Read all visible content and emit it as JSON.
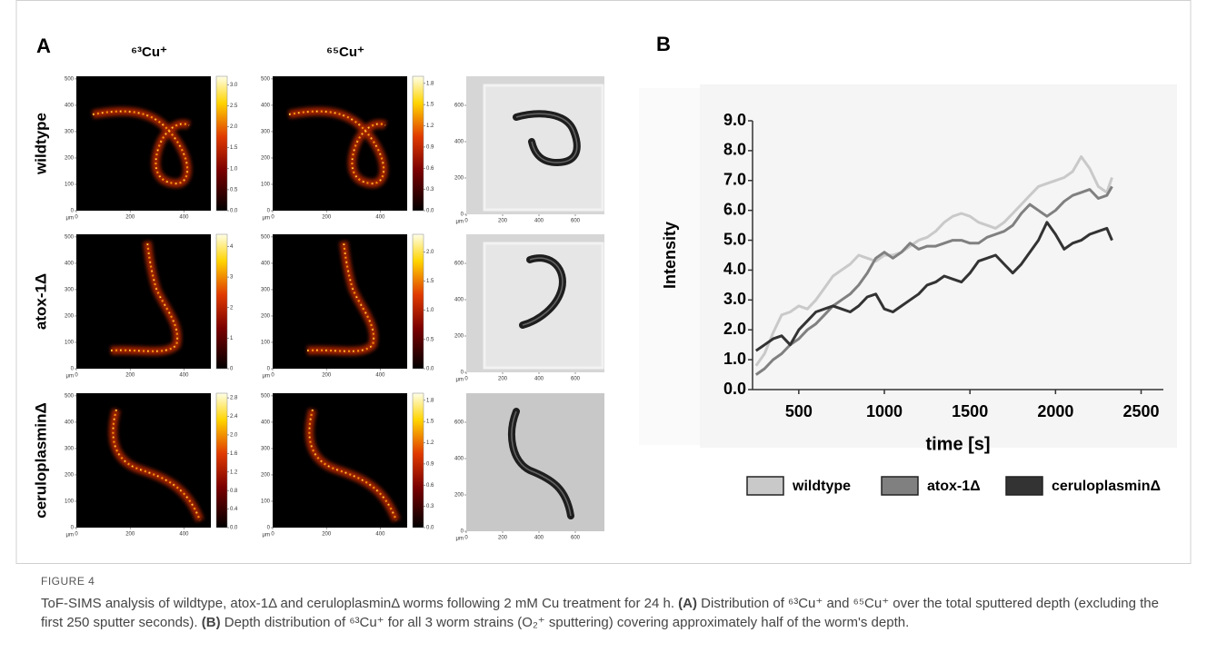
{
  "panel_a": {
    "label": "A",
    "column_headers": [
      "⁶³Cu⁺",
      "⁶⁵Cu⁺"
    ],
    "unit": "μm",
    "map_axes": {
      "xlim": [
        0,
        500
      ],
      "xticks": [
        0,
        200,
        400
      ],
      "ylim": [
        0,
        510
      ],
      "yticks": [
        0,
        100,
        200,
        300,
        400,
        500
      ]
    },
    "photo_axes": {
      "xlim": [
        0,
        760
      ],
      "xticks": [
        0,
        200,
        400,
        600
      ],
      "ylim": [
        0,
        760
      ],
      "yticks": [
        0,
        200,
        400,
        600
      ]
    },
    "rows": [
      {
        "label": "wildtype",
        "colorbars": [
          {
            "lim": [
              0,
              3.2
            ],
            "ticks": [
              {
                "value": 0,
                "label": "0.0"
              },
              0.5,
              {
                "value": 1,
                "label": "1.0"
              },
              1.5,
              {
                "value": 2,
                "label": "2.0"
              },
              2.5,
              {
                "value": 3,
                "label": "3.0"
              }
            ]
          },
          {
            "lim": [
              0,
              1.9
            ],
            "ticks": [
              {
                "value": 0,
                "label": "0.0"
              },
              0.3,
              0.6,
              0.9,
              1.2,
              1.5,
              1.8
            ]
          }
        ]
      },
      {
        "label": "atox-1Δ",
        "colorbars": [
          {
            "lim": [
              0,
              4.4
            ],
            "ticks": [
              0,
              1,
              2,
              3,
              4
            ]
          },
          {
            "lim": [
              0,
              2.3
            ],
            "ticks": [
              {
                "value": 0,
                "label": "0.0"
              },
              0.5,
              {
                "value": 1,
                "label": "1.0"
              },
              1.5,
              {
                "value": 2,
                "label": "2.0"
              }
            ]
          }
        ]
      },
      {
        "label": "ceruloplasminΔ",
        "colorbars": [
          {
            "lim": [
              0,
              2.9
            ],
            "ticks": [
              {
                "value": 0,
                "label": "0.0"
              },
              0.4,
              0.8,
              1.2,
              1.6,
              {
                "value": 2,
                "label": "2.0"
              },
              2.4,
              2.8
            ]
          },
          {
            "lim": [
              0,
              1.9
            ],
            "ticks": [
              {
                "value": 0,
                "label": "0.0"
              },
              0.3,
              0.6,
              0.9,
              1.2,
              1.5,
              1.8
            ]
          }
        ]
      }
    ]
  },
  "panel_b": {
    "label": "B"
  },
  "chart_data": {
    "type": "line",
    "x_label": "time [s]",
    "y_label": "Intensity",
    "xlim": [
      230,
      2630
    ],
    "xticks": [
      500,
      1000,
      1500,
      2000,
      2500
    ],
    "ylim": [
      0,
      9
    ],
    "yticks": [
      {
        "value": 0,
        "label": "0.0"
      },
      {
        "value": 1,
        "label": "1.0"
      },
      {
        "value": 2,
        "label": "2.0"
      },
      {
        "value": 3,
        "label": "3.0"
      },
      {
        "value": 4,
        "label": "4.0"
      },
      {
        "value": 5,
        "label": "5.0"
      },
      {
        "value": 6,
        "label": "6.0"
      },
      {
        "value": 7,
        "label": "7.0"
      },
      {
        "value": 8,
        "label": "8.0"
      },
      {
        "value": 9,
        "label": "9.0"
      }
    ],
    "legend": "bottom",
    "x": [
      250,
      300,
      350,
      400,
      450,
      500,
      550,
      600,
      650,
      700,
      750,
      800,
      850,
      900,
      950,
      1000,
      1050,
      1100,
      1150,
      1200,
      1250,
      1300,
      1350,
      1400,
      1450,
      1500,
      1550,
      1600,
      1650,
      1700,
      1750,
      1800,
      1850,
      1900,
      1950,
      2000,
      2050,
      2100,
      2150,
      2200,
      2250,
      2300,
      2330
    ],
    "series": [
      {
        "name": "wildtype",
        "color": "#c9c9c9",
        "values": [
          0.8,
          1.2,
          1.9,
          2.5,
          2.6,
          2.8,
          2.7,
          3.0,
          3.4,
          3.8,
          4.0,
          4.2,
          4.5,
          4.4,
          4.3,
          4.5,
          4.5,
          4.6,
          4.8,
          5.0,
          5.1,
          5.3,
          5.6,
          5.8,
          5.9,
          5.8,
          5.6,
          5.5,
          5.4,
          5.6,
          5.9,
          6.2,
          6.5,
          6.8,
          6.9,
          7.0,
          7.1,
          7.3,
          7.8,
          7.4,
          6.8,
          6.6,
          7.1
        ]
      },
      {
        "name": "atox-1Δ",
        "color": "#808080",
        "values": [
          0.5,
          0.7,
          1.0,
          1.2,
          1.5,
          1.7,
          2.0,
          2.2,
          2.5,
          2.8,
          3.0,
          3.2,
          3.5,
          3.9,
          4.4,
          4.6,
          4.4,
          4.6,
          4.9,
          4.7,
          4.8,
          4.8,
          4.9,
          5.0,
          5.0,
          4.9,
          4.9,
          5.1,
          5.2,
          5.3,
          5.5,
          5.9,
          6.2,
          6.0,
          5.8,
          6.0,
          6.3,
          6.5,
          6.6,
          6.7,
          6.4,
          6.5,
          6.8
        ]
      },
      {
        "name": "ceruloplasminΔ",
        "color": "#333333",
        "values": [
          1.3,
          1.5,
          1.7,
          1.8,
          1.5,
          2.0,
          2.3,
          2.6,
          2.7,
          2.8,
          2.7,
          2.6,
          2.8,
          3.1,
          3.2,
          2.7,
          2.6,
          2.8,
          3.0,
          3.2,
          3.5,
          3.6,
          3.8,
          3.7,
          3.6,
          3.9,
          4.3,
          4.4,
          4.5,
          4.2,
          3.9,
          4.2,
          4.6,
          5.0,
          5.6,
          5.2,
          4.7,
          4.9,
          5.0,
          5.2,
          5.3,
          5.4,
          5.0
        ]
      }
    ]
  },
  "caption": {
    "label": "FIGURE 4",
    "text": [
      "ToF-SIMS analysis of wildtype, atox-1Δ and ceruloplasminΔ worms following 2 mM Cu treatment for 24 h. ",
      "(A)",
      " Distribution of ⁶³Cu⁺ and ⁶⁵Cu⁺ over the total sputtered depth (excluding the first 250 sputter seconds). ",
      "(B)",
      " Depth distribution of ⁶³Cu⁺ for all 3 worm strains (O₂⁺ sputtering) covering approximately half of the worm's depth."
    ]
  }
}
